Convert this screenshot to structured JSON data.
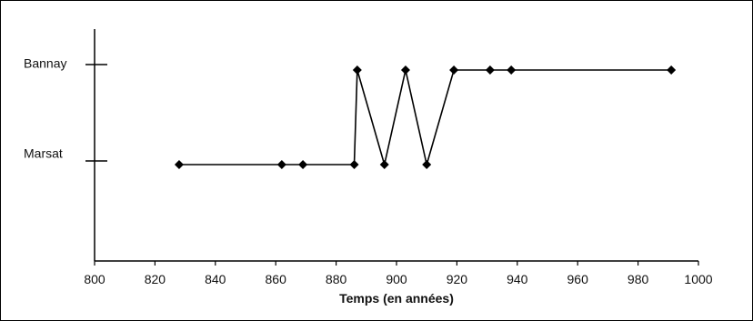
{
  "chart_data": {
    "type": "line",
    "title": "",
    "xlabel": "Temps (en années)",
    "ylabel": "",
    "xlim": [
      800,
      1000
    ],
    "x_ticks": [
      "800",
      "820",
      "840",
      "860",
      "880",
      "900",
      "920",
      "940",
      "960",
      "980",
      "1000"
    ],
    "y_categories": [
      "Marsat",
      "Bannay"
    ],
    "grid": false,
    "legend": "none",
    "colors": {
      "line": "#000000",
      "marker": "#000000",
      "axis": "#000000"
    },
    "series": [
      {
        "marker": "diamond",
        "points": [
          {
            "x": 828,
            "y": "Marsat"
          },
          {
            "x": 862,
            "y": "Marsat"
          },
          {
            "x": 869,
            "y": "Marsat"
          },
          {
            "x": 886,
            "y": "Marsat"
          },
          {
            "x": 887,
            "y": "Bannay"
          },
          {
            "x": 896,
            "y": "Marsat"
          },
          {
            "x": 903,
            "y": "Bannay"
          },
          {
            "x": 910,
            "y": "Marsat"
          },
          {
            "x": 919,
            "y": "Bannay"
          },
          {
            "x": 931,
            "y": "Bannay"
          },
          {
            "x": 938,
            "y": "Bannay"
          },
          {
            "x": 991,
            "y": "Bannay"
          }
        ]
      }
    ]
  }
}
